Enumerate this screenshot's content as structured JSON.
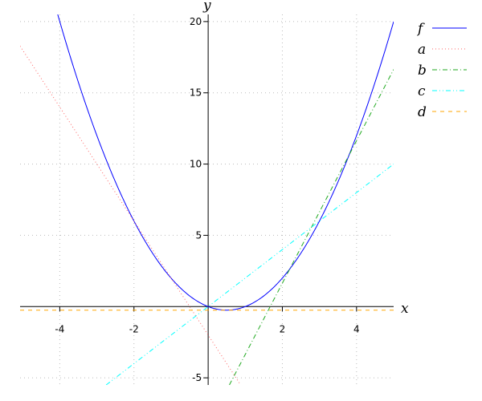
{
  "chart_data": {
    "type": "line",
    "title": "",
    "xlabel": "x",
    "ylabel": "y",
    "xlim": [
      -5.07,
      5
    ],
    "ylim": [
      -5.5,
      20.5
    ],
    "xticks": [
      -4,
      -2,
      2,
      4
    ],
    "yticks": [
      -5,
      5,
      10,
      15,
      20
    ],
    "grid": true,
    "legend_position": "top-right",
    "series": [
      {
        "name": "f",
        "color": "#0000ff",
        "style": "solid",
        "expression": "x^2 - x"
      },
      {
        "name": "a",
        "color": "#ff6666",
        "style": "dotted",
        "expression": "-4x - 2"
      },
      {
        "name": "b",
        "color": "#22aa22",
        "style": "dashdot",
        "expression": "5x - 8.36"
      },
      {
        "name": "c",
        "color": "#00ffff",
        "style": "dashdotdot",
        "expression": "2x"
      },
      {
        "name": "d",
        "color": "#ffa500",
        "style": "dashed",
        "expression": "-0.25"
      }
    ]
  }
}
